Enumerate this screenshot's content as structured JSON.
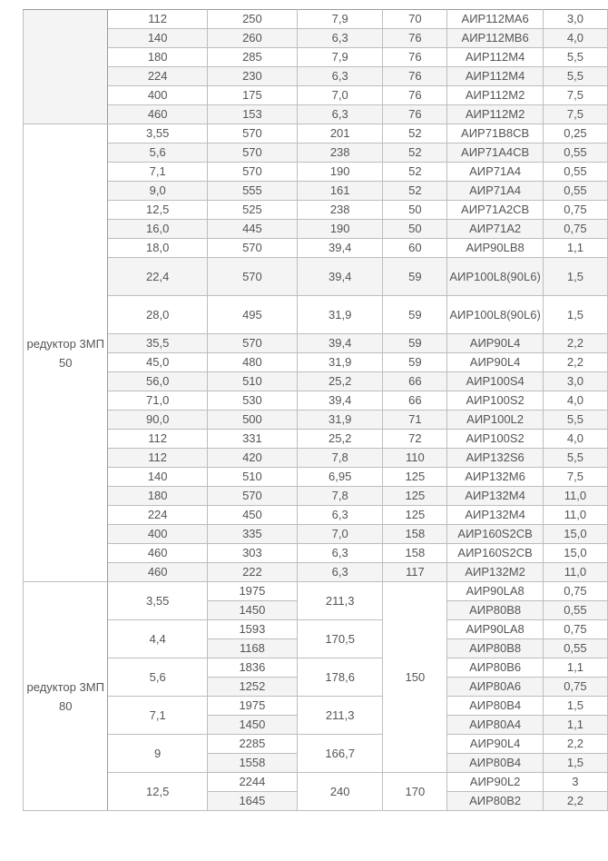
{
  "groups": [
    {
      "label": "",
      "label_shaded": true,
      "rows": [
        [
          "112",
          "250",
          "7,9",
          "70",
          "АИР112МА6",
          "3,0"
        ],
        [
          "140",
          "260",
          "6,3",
          "76",
          "АИР112МВ6",
          "4,0"
        ],
        [
          "180",
          "285",
          "7,9",
          "76",
          "АИР112М4",
          "5,5"
        ],
        [
          "224",
          "230",
          "6,3",
          "76",
          "АИР112М4",
          "5,5"
        ],
        [
          "400",
          "175",
          "7,0",
          "76",
          "АИР112М2",
          "7,5"
        ],
        [
          "460",
          "153",
          "6,3",
          "76",
          "АИР112М2",
          "7,5"
        ]
      ]
    },
    {
      "label": "редуктор 3МП 50",
      "label_shaded": false,
      "rows": [
        [
          "3,55",
          "570",
          "201",
          "52",
          "АИР71В8СВ",
          "0,25"
        ],
        [
          "5,6",
          "570",
          "238",
          "52",
          "АИР71А4СВ",
          "0,55"
        ],
        [
          "7,1",
          "570",
          "190",
          "52",
          "АИР71А4",
          "0,55"
        ],
        [
          "9,0",
          "555",
          "161",
          "52",
          "АИР71А4",
          "0,55"
        ],
        [
          "12,5",
          "525",
          "238",
          "50",
          "АИР71А2СВ",
          "0,75"
        ],
        [
          "16,0",
          "445",
          "190",
          "50",
          "АИР71А2",
          "0,75"
        ],
        [
          "18,0",
          "570",
          "39,4",
          "60",
          "АИР90LВ8",
          "1,1"
        ],
        [
          "22,4",
          "570",
          "39,4",
          "59",
          "АИР100L8(90L6)",
          "1,5"
        ],
        [
          "28,0",
          "495",
          "31,9",
          "59",
          "АИР100L8(90L6)",
          "1,5"
        ],
        [
          "35,5",
          "570",
          "39,4",
          "59",
          "АИР90L4",
          "2,2"
        ],
        [
          "45,0",
          "480",
          "31,9",
          "59",
          "АИР90L4",
          "2,2"
        ],
        [
          "56,0",
          "510",
          "25,2",
          "66",
          "АИР100S4",
          "3,0"
        ],
        [
          "71,0",
          "530",
          "39,4",
          "66",
          "АИР100S2",
          "4,0"
        ],
        [
          "90,0",
          "500",
          "31,9",
          "71",
          "АИР100L2",
          "5,5"
        ],
        [
          "112",
          "331",
          "25,2",
          "72",
          "АИР100S2",
          "4,0"
        ],
        [
          "112",
          "420",
          "7,8",
          "110",
          "АИР132S6",
          "5,5"
        ],
        [
          "140",
          "510",
          "6,95",
          "125",
          "АИР132М6",
          "7,5"
        ],
        [
          "180",
          "570",
          "7,8",
          "125",
          "АИР132М4",
          "11,0"
        ],
        [
          "224",
          "450",
          "6,3",
          "125",
          "АИР132М4",
          "11,0"
        ],
        [
          "400",
          "335",
          "7,0",
          "158",
          "АИР160S2СВ",
          "15,0"
        ],
        [
          "460",
          "303",
          "6,3",
          "158",
          "АИР160S2СВ",
          "15,0"
        ],
        [
          "460",
          "222",
          "6,3",
          "117",
          "АИР132М2",
          "11,0"
        ]
      ]
    }
  ],
  "group80": {
    "label": "редуктор 3МП 80",
    "blocks": [
      {
        "ratio": "3,55",
        "torque": "211,3",
        "rows": [
          [
            "1975",
            "АИР90LА8",
            "0,75"
          ],
          [
            "1450",
            "АИР80В8",
            "0,55"
          ]
        ]
      },
      {
        "ratio": "4,4",
        "torque": "170,5",
        "rows": [
          [
            "1593",
            "АИР90LА8",
            "0,75"
          ],
          [
            "1168",
            "АИР80В8",
            "0,55"
          ]
        ]
      },
      {
        "ratio": "5,6",
        "torque": "178,6",
        "rows": [
          [
            "1836",
            "АИР80В6",
            "1,1"
          ],
          [
            "1252",
            "АИР80А6",
            "0,75"
          ]
        ]
      },
      {
        "ratio": "7,1",
        "torque": "211,3",
        "rows": [
          [
            "1975",
            "АИР80В4",
            "1,5"
          ],
          [
            "1450",
            "АИР80А4",
            "1,1"
          ]
        ]
      },
      {
        "ratio": "9",
        "torque": "166,7",
        "rows": [
          [
            "2285",
            "АИР90L4",
            "2,2"
          ],
          [
            "1558",
            "АИР80В4",
            "1,5"
          ]
        ]
      },
      {
        "ratio": "12,5",
        "torque": "240",
        "rows": [
          [
            "2244",
            "АИР90L2",
            "3"
          ],
          [
            "1645",
            "АИР80В2",
            "2,2"
          ]
        ]
      }
    ],
    "mass_spans": [
      {
        "value": "150",
        "blocks": 5
      },
      {
        "value": "170",
        "blocks": 1
      }
    ]
  }
}
